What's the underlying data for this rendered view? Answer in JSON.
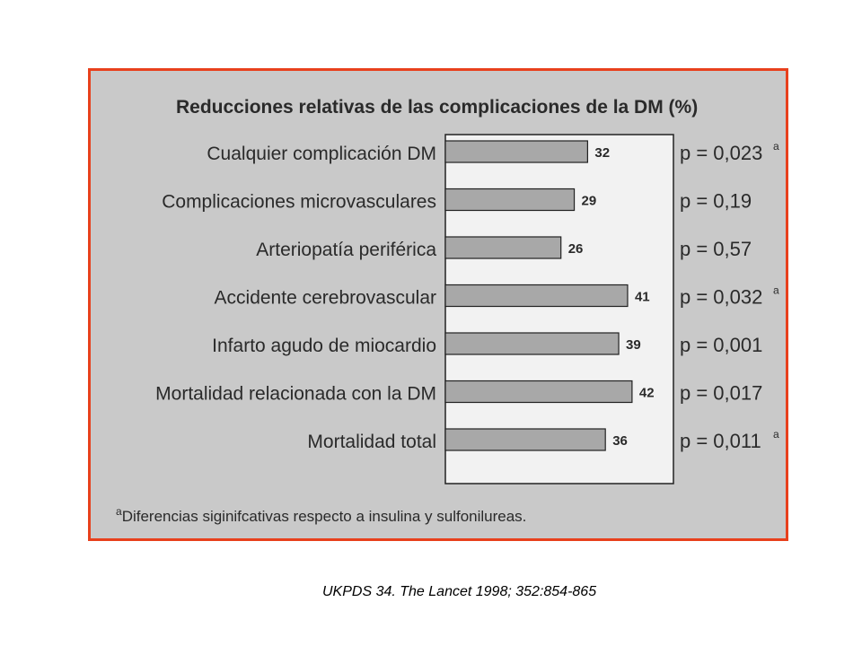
{
  "colors": {
    "frame": "#e8401c",
    "background": "#c9c9c9",
    "plot_bg": "#f2f2f2",
    "bar": "#a8a8a8",
    "text": "#2a2a2a"
  },
  "chart_data": {
    "type": "bar",
    "orientation": "horizontal",
    "title": "Reducciones relativas de las complicaciones de la DM (%)",
    "categories": [
      "Cualquier complicación DM",
      "Complicaciones microvasculares",
      "Arteriopatía periférica",
      "Accidente cerebrovascular",
      "Infarto agudo de miocardio",
      "Mortalidad relacionada con la DM",
      "Mortalidad total"
    ],
    "values": [
      32,
      29,
      26,
      41,
      39,
      42,
      36
    ],
    "value_labels": [
      "32",
      "29",
      "26",
      "41",
      "39",
      "42",
      "36"
    ],
    "p_values": [
      "p = 0,023",
      "p = 0,19",
      "p = 0,57",
      "p = 0,032",
      "p = 0,001",
      "p = 0,017",
      "p = 0,011"
    ],
    "p_marks": [
      "a",
      "",
      "",
      "a",
      "",
      "",
      "a"
    ],
    "footnote_mark": "a",
    "footnote": "Diferencias siginifcativas respecto a insulina y sulfonilureas.",
    "xlim": [
      0,
      50
    ],
    "grid": false,
    "legend": "none"
  },
  "citation": "UKPDS 34. The Lancet 1998; 352:854-865"
}
